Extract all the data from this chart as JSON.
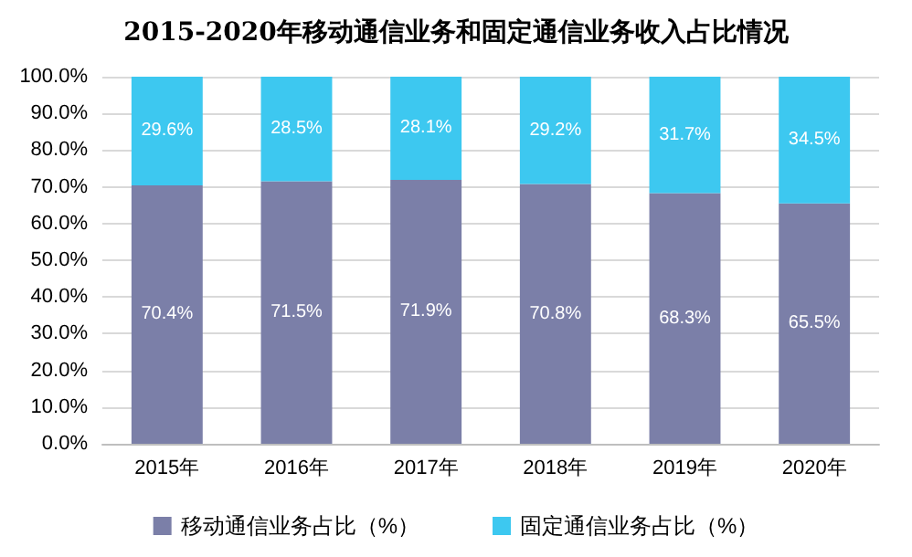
{
  "chart_data": {
    "type": "bar",
    "title": "2015-2020年移动通信业务和固定通信业务收入占比情况",
    "categories": [
      "2015年",
      "2016年",
      "2017年",
      "2018年",
      "2019年",
      "2020年"
    ],
    "stacked": true,
    "series": [
      {
        "name": "移动通信业务占比（%）",
        "color": "#7b7fa8",
        "values": [
          70.4,
          71.5,
          71.9,
          70.8,
          68.3,
          65.5
        ],
        "value_labels": [
          "70.4%",
          "71.5%",
          "71.9%",
          "70.8%",
          "68.3%",
          "65.5%"
        ]
      },
      {
        "name": "固定通信业务占比（%）",
        "color": "#3dc8f0",
        "values": [
          29.6,
          28.5,
          28.1,
          29.2,
          31.7,
          34.5
        ],
        "value_labels": [
          "29.6%",
          "28.5%",
          "28.1%",
          "29.2%",
          "31.7%",
          "34.5%"
        ]
      }
    ],
    "ylim": [
      0,
      100
    ],
    "yticks": [
      {
        "value": 0,
        "label": "0.0%"
      },
      {
        "value": 10,
        "label": "10.0%"
      },
      {
        "value": 20,
        "label": "20.0%"
      },
      {
        "value": 30,
        "label": "30.0%"
      },
      {
        "value": 40,
        "label": "40.0%"
      },
      {
        "value": 50,
        "label": "50.0%"
      },
      {
        "value": 60,
        "label": "60.0%"
      },
      {
        "value": 70,
        "label": "70.0%"
      },
      {
        "value": 80,
        "label": "80.0%"
      },
      {
        "value": 90,
        "label": "90.0%"
      },
      {
        "value": 100,
        "label": "100.0%"
      }
    ],
    "grid": "y",
    "legend": "bottom"
  }
}
